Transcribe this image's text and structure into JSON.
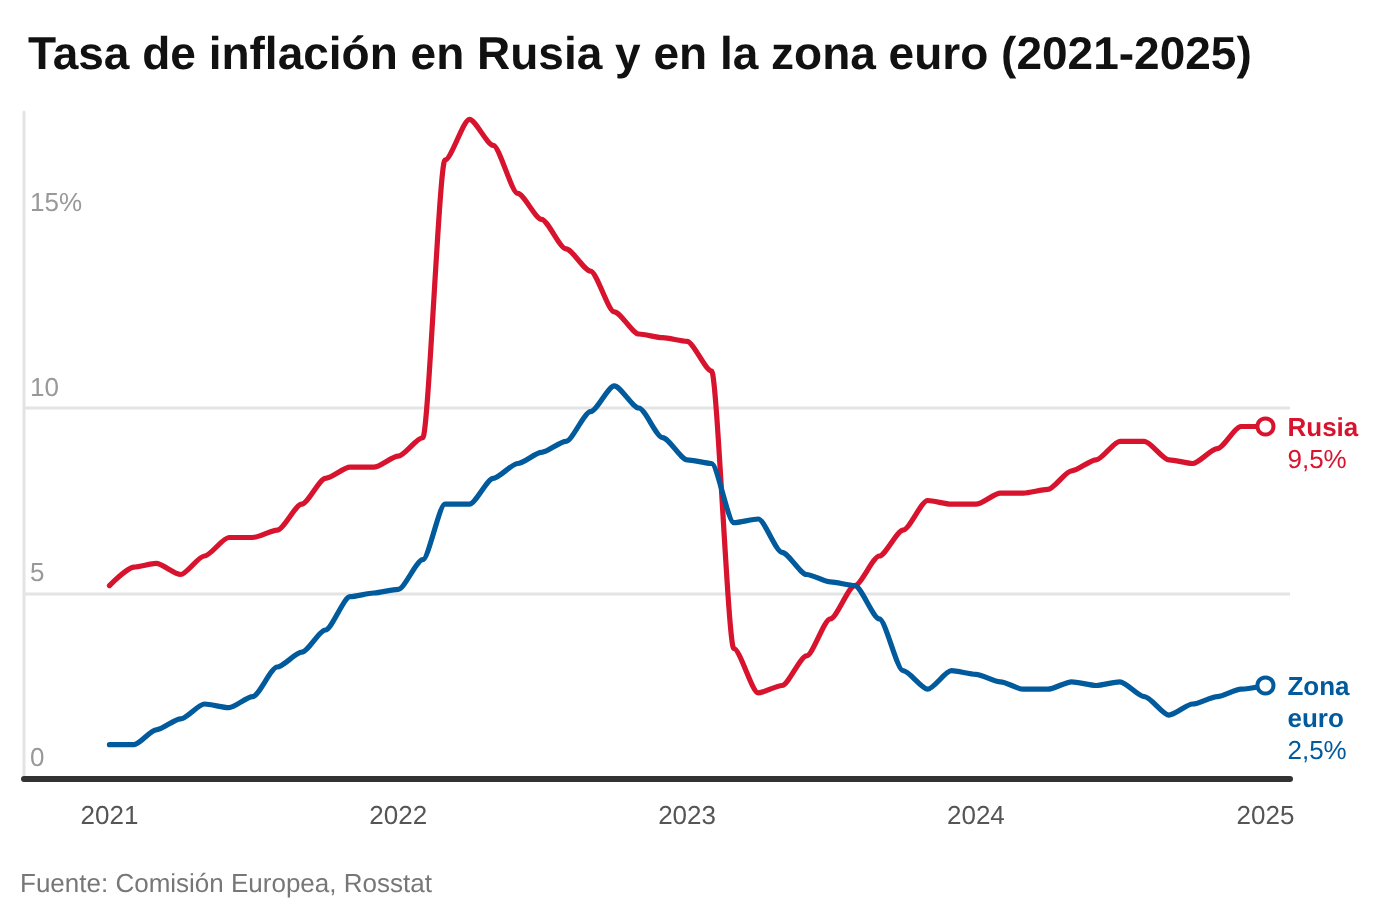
{
  "chart_data": {
    "type": "line",
    "title": "Tasa de inflación en Rusia y en la zona euro (2021-2025)",
    "x": [
      "2021-01",
      "2021-02",
      "2021-03",
      "2021-04",
      "2021-05",
      "2021-06",
      "2021-07",
      "2021-08",
      "2021-09",
      "2021-10",
      "2021-11",
      "2021-12",
      "2022-01",
      "2022-02",
      "2022-03",
      "2022-04",
      "2022-05",
      "2022-06",
      "2022-07",
      "2022-08",
      "2022-09",
      "2022-10",
      "2022-11",
      "2022-12",
      "2023-01",
      "2023-02",
      "2023-03",
      "2023-04",
      "2023-05",
      "2023-06",
      "2023-07",
      "2023-08",
      "2023-09",
      "2023-10",
      "2023-11",
      "2023-12",
      "2024-01",
      "2024-02",
      "2024-03",
      "2024-04",
      "2024-05",
      "2024-06",
      "2024-07",
      "2024-08",
      "2024-09",
      "2024-10",
      "2024-11",
      "2024-12",
      "2025-01"
    ],
    "xlim": [
      "2020-09-15",
      "2025-02-01"
    ],
    "xticks": [
      "2021",
      "2022",
      "2023",
      "2024",
      "2025"
    ],
    "ylim": [
      0,
      18
    ],
    "yticks": [
      0,
      5,
      10,
      {
        "value": 15,
        "label": "15%"
      }
    ],
    "grid": "y",
    "series": [
      {
        "name": "Rusia",
        "color": "#d7132d",
        "values": [
          5.2,
          5.7,
          5.8,
          5.5,
          6.0,
          6.5,
          6.5,
          6.7,
          7.4,
          8.1,
          8.4,
          8.4,
          8.7,
          9.2,
          16.7,
          17.8,
          17.1,
          15.8,
          15.1,
          14.3,
          13.7,
          12.6,
          12.0,
          11.9,
          11.8,
          11.0,
          3.5,
          2.3,
          2.5,
          3.3,
          4.3,
          5.2,
          6.0,
          6.7,
          7.5,
          7.4,
          7.4,
          7.7,
          7.7,
          7.8,
          8.3,
          8.6,
          9.1,
          9.1,
          8.6,
          8.5,
          8.9,
          9.5,
          9.5
        ],
        "value_labels": [
          null,
          null,
          null,
          null,
          null,
          null,
          null,
          null,
          null,
          null,
          null,
          null,
          null,
          null,
          null,
          null,
          null,
          null,
          null,
          null,
          null,
          null,
          null,
          null,
          null,
          null,
          null,
          null,
          null,
          null,
          null,
          null,
          null,
          null,
          null,
          null,
          null,
          null,
          null,
          null,
          null,
          null,
          null,
          null,
          null,
          null,
          null,
          null,
          "9,5%"
        ]
      },
      {
        "name": "Zona euro",
        "color": "#005a9c",
        "values": [
          0.9,
          0.9,
          1.3,
          1.6,
          2.0,
          1.9,
          2.2,
          3.0,
          3.4,
          4.0,
          4.9,
          5.0,
          5.1,
          5.9,
          7.4,
          7.4,
          8.1,
          8.5,
          8.8,
          9.1,
          9.9,
          10.6,
          10.0,
          9.2,
          8.6,
          8.5,
          6.9,
          7.0,
          6.1,
          5.5,
          5.3,
          5.2,
          4.3,
          2.9,
          2.4,
          2.9,
          2.8,
          2.6,
          2.4,
          2.4,
          2.6,
          2.5,
          2.6,
          2.2,
          1.7,
          2.0,
          2.2,
          2.4,
          2.5
        ],
        "value_labels": [
          null,
          null,
          null,
          null,
          null,
          null,
          null,
          null,
          null,
          null,
          null,
          null,
          null,
          null,
          null,
          null,
          null,
          null,
          null,
          null,
          null,
          null,
          null,
          null,
          null,
          null,
          null,
          null,
          null,
          null,
          null,
          null,
          null,
          null,
          null,
          null,
          null,
          null,
          null,
          null,
          null,
          null,
          null,
          null,
          null,
          null,
          null,
          null,
          "2,5%"
        ]
      }
    ],
    "annotations": [
      "Fuente: Comisión Europea, Rosstat"
    ]
  }
}
